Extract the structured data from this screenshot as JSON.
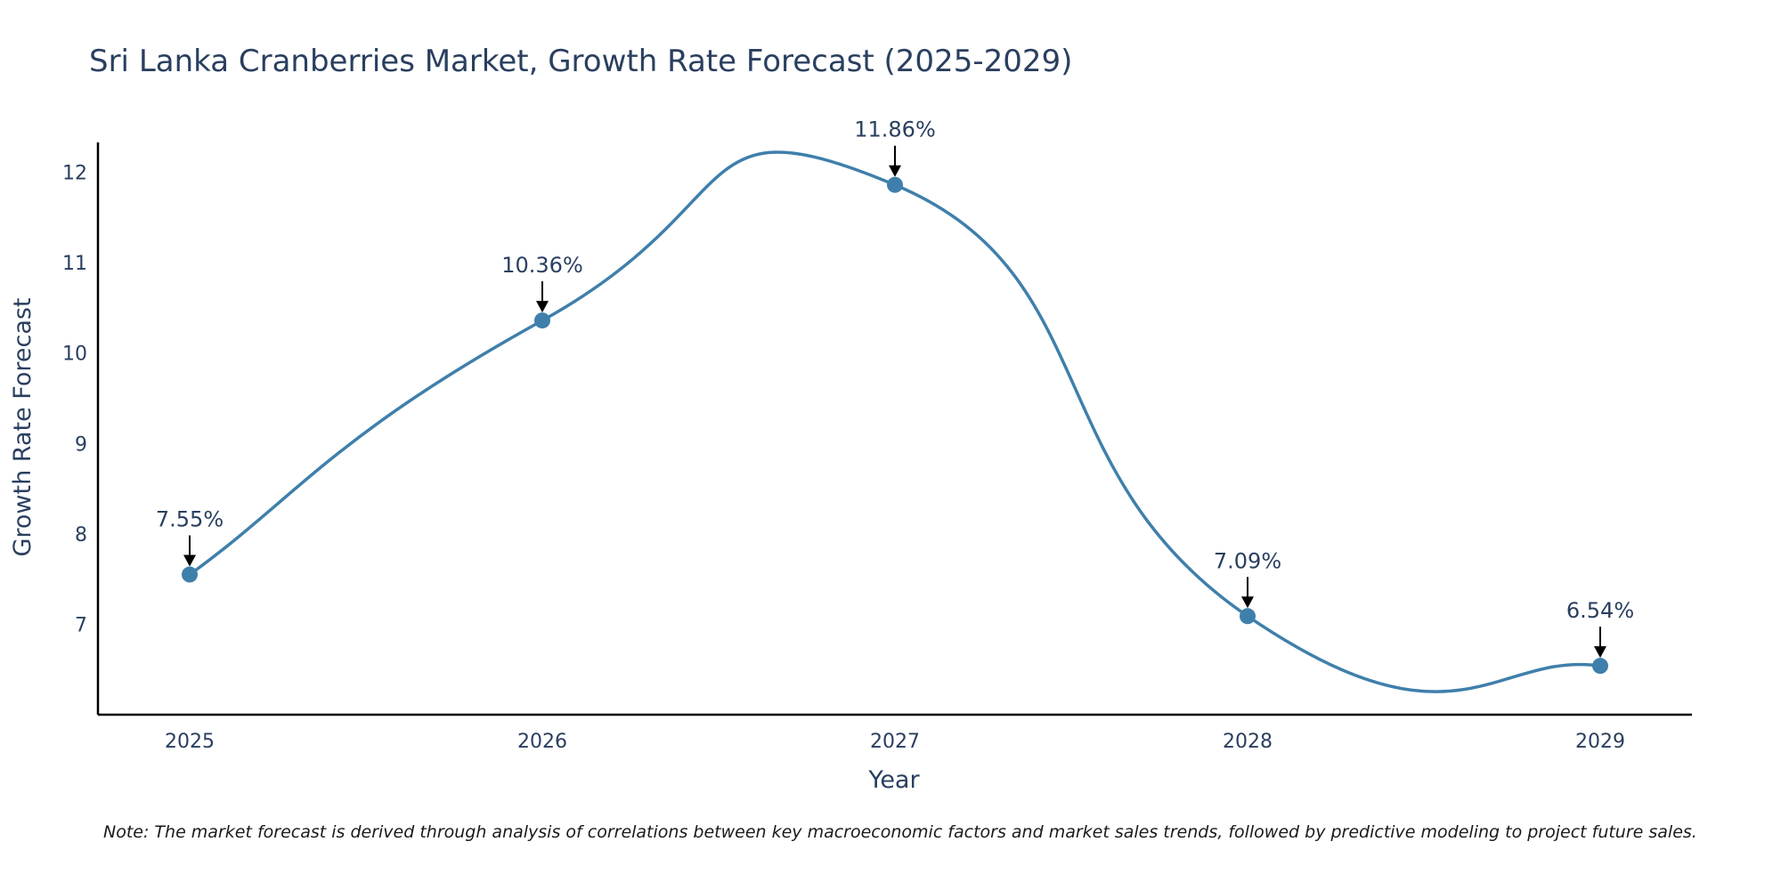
{
  "chart_data": {
    "type": "line",
    "title": "Sri Lanka Cranberries Market, Growth Rate Forecast (2025-2029)",
    "xlabel": "Year",
    "ylabel": "Growth Rate Forecast",
    "categories": [
      "2025",
      "2026",
      "2027",
      "2028",
      "2029"
    ],
    "values": [
      7.55,
      10.36,
      11.86,
      7.09,
      6.54
    ],
    "data_labels": [
      "7.55%",
      "10.36%",
      "11.86%",
      "7.09%",
      "6.54%"
    ],
    "yticks": [
      7,
      8,
      9,
      10,
      11,
      12
    ],
    "ylim": [
      6.0,
      12.33
    ],
    "line_color": "#3f7fab",
    "marker_color": "#3f7fab",
    "grid": false,
    "legend": "none"
  },
  "note": "Note: The market forecast is derived through analysis of correlations between key macroeconomic factors and market sales trends, followed by predictive modeling to project future sales."
}
